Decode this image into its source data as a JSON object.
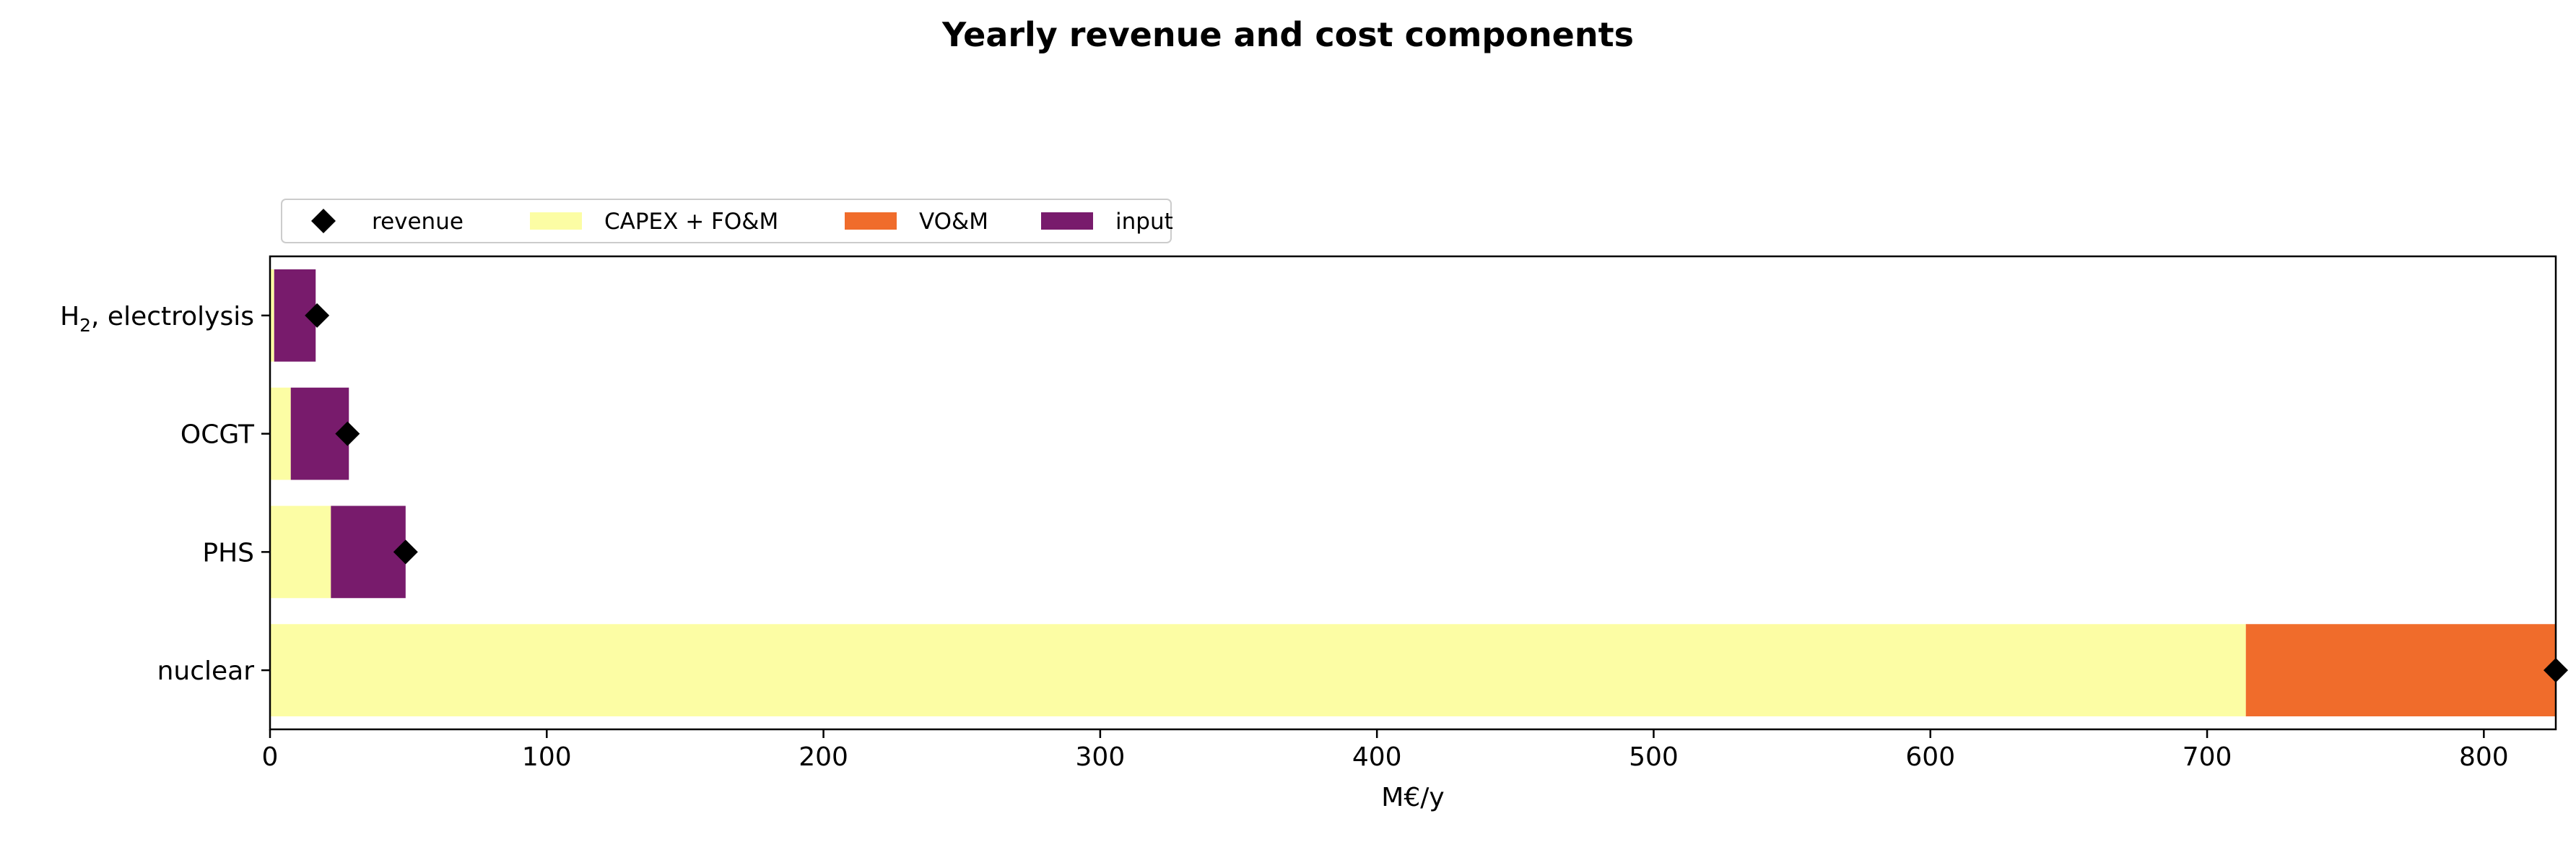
{
  "chart_data": {
    "type": "bar",
    "orientation": "horizontal",
    "stacked": true,
    "title": "Yearly revenue and cost components",
    "xlabel": "M€/y",
    "ylabel": "",
    "xlim": [
      0,
      826
    ],
    "xticks": [
      0,
      100,
      200,
      300,
      400,
      500,
      600,
      700,
      800
    ],
    "grid": false,
    "legend_position": "top-left, above plot",
    "categories": [
      {
        "sub_pre": "H",
        "sub": "2",
        "sub_post": ", electrolysis"
      },
      {
        "sub_pre": "OCGT",
        "sub": "",
        "sub_post": ""
      },
      {
        "sub_pre": "PHS",
        "sub": "",
        "sub_post": ""
      },
      {
        "sub_pre": "nuclear",
        "sub": "",
        "sub_post": ""
      }
    ],
    "series": [
      {
        "name": "CAPEX + FO&M",
        "color": "#fcfda4",
        "values": [
          1.5,
          7.5,
          22,
          714
        ]
      },
      {
        "name": "VO&M",
        "color": "#f06c2b",
        "values": [
          0,
          0,
          0,
          112
        ]
      },
      {
        "name": "input",
        "color": "#781b6c",
        "values": [
          15,
          21,
          27,
          0
        ]
      }
    ],
    "markers": {
      "name": "revenue",
      "color": "#000000",
      "shape": "diamond",
      "values": [
        17,
        28,
        49,
        826
      ]
    }
  }
}
